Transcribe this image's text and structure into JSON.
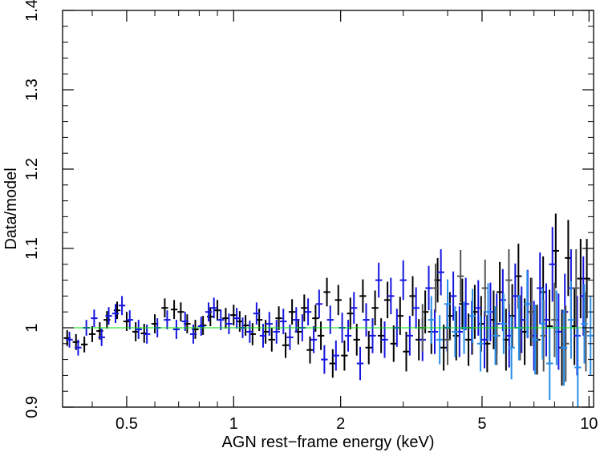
{
  "chart_data": {
    "type": "scatter",
    "xlabel": "AGN rest−frame energy (keV)",
    "ylabel": "Data/model",
    "x_scale": "log",
    "xlim": [
      0.33,
      10.3
    ],
    "ylim": [
      0.9,
      1.4
    ],
    "x_ticks": [
      {
        "value": 0.5,
        "label": "0.5"
      },
      {
        "value": 1,
        "label": "1"
      },
      {
        "value": 2,
        "label": "2"
      },
      {
        "value": 5,
        "label": "5"
      },
      {
        "value": 10,
        "label": "10"
      }
    ],
    "y_ticks": [
      {
        "value": 0.9,
        "label": "0.9"
      },
      {
        "value": 1.0,
        "label": "1"
      },
      {
        "value": 1.1,
        "label": "1.1"
      },
      {
        "value": 1.2,
        "label": "1.2"
      },
      {
        "value": 1.3,
        "label": "1.3"
      },
      {
        "value": 1.4,
        "label": "1.4"
      }
    ],
    "reference_line": {
      "y": 1.0,
      "color": "#00dd00"
    },
    "grid": false,
    "colors": {
      "black": "#000000",
      "blue": "#1515e0",
      "gray": "#555555",
      "lightblue": "#2a8ee8",
      "axis": "#000000"
    },
    "series": [
      {
        "color": "black",
        "points": [
          [
            0.34,
            0.987,
            0.01
          ],
          [
            0.36,
            0.982,
            0.01
          ],
          [
            0.38,
            0.979,
            0.01
          ],
          [
            0.4,
            0.992,
            0.01
          ],
          [
            0.42,
            0.996,
            0.011
          ],
          [
            0.44,
            1.01,
            0.011
          ],
          [
            0.47,
            1.022,
            0.011
          ],
          [
            0.5,
            1.008,
            0.012
          ],
          [
            0.53,
            0.995,
            0.012
          ],
          [
            0.56,
            0.993,
            0.012
          ],
          [
            0.6,
            1.005,
            0.012
          ],
          [
            0.64,
            1.025,
            0.012
          ],
          [
            0.68,
            1.023,
            0.012
          ],
          [
            0.71,
            1.02,
            0.012
          ],
          [
            0.74,
            1.005,
            0.012
          ],
          [
            0.78,
            0.998,
            0.012
          ],
          [
            0.82,
            1.003,
            0.012
          ],
          [
            0.86,
            1.014,
            0.012
          ],
          [
            0.9,
            1.022,
            0.013
          ],
          [
            0.95,
            1.012,
            0.013
          ],
          [
            1.0,
            1.016,
            0.013
          ],
          [
            1.04,
            1.008,
            0.013
          ],
          [
            1.08,
            1.003,
            0.013
          ],
          [
            1.13,
            0.992,
            0.014
          ],
          [
            1.18,
            1.01,
            0.014
          ],
          [
            1.23,
            0.995,
            0.015
          ],
          [
            1.28,
            0.985,
            0.015
          ],
          [
            1.34,
            1.012,
            0.015
          ],
          [
            1.4,
            0.978,
            0.016
          ],
          [
            1.46,
            1.02,
            0.016
          ],
          [
            1.52,
            0.995,
            0.016
          ],
          [
            1.58,
            1.025,
            0.017
          ],
          [
            1.64,
            0.972,
            0.017
          ],
          [
            1.7,
            1.012,
            0.017
          ],
          [
            1.76,
            0.99,
            0.018
          ],
          [
            1.83,
            1.045,
            0.018
          ],
          [
            1.9,
            0.955,
            0.018
          ],
          [
            1.97,
            1.035,
            0.019
          ],
          [
            2.05,
            0.965,
            0.019
          ],
          [
            2.13,
            1.018,
            0.02
          ],
          [
            2.22,
            0.985,
            0.02
          ],
          [
            2.31,
            1.04,
            0.021
          ],
          [
            2.4,
            0.975,
            0.021
          ],
          [
            2.5,
            1.025,
            0.022
          ],
          [
            2.6,
            0.99,
            0.022
          ],
          [
            2.71,
            1.035,
            0.023
          ],
          [
            2.82,
            0.98,
            0.023
          ],
          [
            2.94,
            1.015,
            0.024
          ],
          [
            3.06,
            0.97,
            0.025
          ],
          [
            3.19,
            1.04,
            0.025
          ],
          [
            3.32,
            0.985,
            0.026
          ],
          [
            3.46,
            1.02,
            0.027
          ],
          [
            3.6,
            0.995,
            0.028
          ],
          [
            3.75,
            1.06,
            0.028
          ],
          [
            3.9,
            0.975,
            0.029
          ],
          [
            4.06,
            1.015,
            0.03
          ],
          [
            4.23,
            0.99,
            0.031
          ],
          [
            4.4,
            1.03,
            0.032
          ],
          [
            4.58,
            0.985,
            0.033
          ],
          [
            4.77,
            1.02,
            0.034
          ],
          [
            4.97,
            1.005,
            0.035
          ],
          [
            5.17,
            0.98,
            0.036
          ],
          [
            5.39,
            1.01,
            0.037
          ],
          [
            5.61,
            1.045,
            0.038
          ],
          [
            5.84,
            0.985,
            0.039
          ],
          [
            6.08,
            1.015,
            0.04
          ],
          [
            6.33,
            1.065,
            0.041
          ],
          [
            6.59,
            0.995,
            0.042
          ],
          [
            6.86,
            1.02,
            0.043
          ],
          [
            7.14,
            0.985,
            0.044
          ],
          [
            7.43,
            1.045,
            0.045
          ],
          [
            7.74,
            1.002,
            0.046
          ],
          [
            8.06,
            1.097,
            0.047
          ],
          [
            8.39,
            0.975,
            0.048
          ],
          [
            8.74,
            1.088,
            0.048
          ],
          [
            9.1,
            1.002,
            0.049
          ],
          [
            9.47,
            1.062,
            0.05
          ],
          [
            9.86,
            1.062,
            0.05
          ]
        ]
      },
      {
        "color": "blue",
        "points": [
          [
            0.345,
            0.985,
            0.01
          ],
          [
            0.365,
            0.975,
            0.01
          ],
          [
            0.385,
            1.0,
            0.01
          ],
          [
            0.405,
            1.012,
            0.011
          ],
          [
            0.425,
            0.988,
            0.011
          ],
          [
            0.445,
            1.015,
            0.011
          ],
          [
            0.465,
            1.018,
            0.012
          ],
          [
            0.485,
            1.028,
            0.012
          ],
          [
            0.51,
            1.01,
            0.012
          ],
          [
            0.54,
            0.998,
            0.012
          ],
          [
            0.57,
            0.992,
            0.012
          ],
          [
            0.61,
            1.0,
            0.012
          ],
          [
            0.65,
            1.01,
            0.012
          ],
          [
            0.69,
            0.998,
            0.012
          ],
          [
            0.73,
            1.008,
            0.012
          ],
          [
            0.77,
            0.992,
            0.012
          ],
          [
            0.81,
            1.002,
            0.012
          ],
          [
            0.85,
            1.02,
            0.012
          ],
          [
            0.88,
            1.025,
            0.013
          ],
          [
            0.92,
            1.01,
            0.013
          ],
          [
            0.97,
            1.005,
            0.013
          ],
          [
            1.02,
            1.012,
            0.013
          ],
          [
            1.06,
            1.0,
            0.013
          ],
          [
            1.11,
            0.995,
            0.014
          ],
          [
            1.16,
            1.018,
            0.014
          ],
          [
            1.21,
            0.99,
            0.015
          ],
          [
            1.26,
            1.005,
            0.015
          ],
          [
            1.32,
            0.995,
            0.015
          ],
          [
            1.38,
            1.008,
            0.016
          ],
          [
            1.44,
            0.988,
            0.016
          ],
          [
            1.5,
            1.01,
            0.016
          ],
          [
            1.56,
            1.0,
            0.017
          ],
          [
            1.62,
            1.02,
            0.017
          ],
          [
            1.68,
            0.985,
            0.017
          ],
          [
            1.74,
            1.03,
            0.018
          ],
          [
            1.8,
            0.96,
            0.018
          ],
          [
            1.87,
            1.01,
            0.018
          ],
          [
            1.94,
            0.965,
            0.019
          ],
          [
            2.02,
            1.0,
            0.019
          ],
          [
            2.1,
            0.99,
            0.02
          ],
          [
            2.18,
            1.025,
            0.02
          ],
          [
            2.27,
            0.955,
            0.021
          ],
          [
            2.36,
            1.01,
            0.021
          ],
          [
            2.46,
            0.99,
            0.022
          ],
          [
            2.56,
            1.06,
            0.022
          ],
          [
            2.66,
            0.985,
            0.023
          ],
          [
            2.77,
            1.04,
            0.023
          ],
          [
            2.88,
            1.0,
            0.024
          ],
          [
            3.0,
            1.06,
            0.025
          ],
          [
            3.13,
            0.99,
            0.025
          ],
          [
            3.26,
            1.025,
            0.026
          ],
          [
            3.4,
            0.985,
            0.027
          ],
          [
            3.54,
            1.05,
            0.028
          ],
          [
            3.68,
            0.995,
            0.028
          ],
          [
            3.83,
            1.07,
            0.029
          ],
          [
            3.99,
            1.0,
            0.03
          ],
          [
            4.15,
            1.04,
            0.031
          ],
          [
            4.32,
            0.995,
            0.032
          ],
          [
            4.5,
            1.03,
            0.033
          ],
          [
            4.68,
            1.0,
            0.034
          ],
          [
            4.88,
            1.025,
            0.035
          ],
          [
            5.08,
            0.985,
            0.036
          ],
          [
            5.28,
            1.02,
            0.037
          ],
          [
            5.5,
            1.005,
            0.038
          ],
          [
            5.72,
            1.035,
            0.039
          ],
          [
            5.96,
            0.99,
            0.04
          ],
          [
            6.2,
            1.04,
            0.041
          ],
          [
            6.46,
            1.01,
            0.042
          ],
          [
            6.72,
            1.03,
            0.043
          ],
          [
            7.0,
            0.99,
            0.044
          ],
          [
            7.28,
            1.05,
            0.045
          ],
          [
            7.58,
            1.01,
            0.046
          ],
          [
            7.89,
            1.08,
            0.047
          ],
          [
            8.21,
            0.995,
            0.048
          ],
          [
            8.55,
            1.02,
            0.048
          ],
          [
            8.9,
            1.05,
            0.049
          ],
          [
            9.26,
            0.99,
            0.05
          ],
          [
            9.64,
            1.04,
            0.05
          ]
        ]
      },
      {
        "color": "gray",
        "points": [
          [
            3.4,
            1.0,
            0.03
          ],
          [
            3.7,
            1.05,
            0.031
          ],
          [
            4.0,
            0.985,
            0.032
          ],
          [
            4.35,
            1.065,
            0.033
          ],
          [
            4.7,
            1.0,
            0.034
          ],
          [
            5.1,
            1.05,
            0.036
          ],
          [
            5.5,
            0.99,
            0.037
          ],
          [
            5.95,
            1.06,
            0.039
          ],
          [
            6.4,
            1.0,
            0.041
          ],
          [
            6.9,
            1.02,
            0.043
          ],
          [
            7.45,
            0.99,
            0.045
          ],
          [
            8.0,
            1.01,
            0.047
          ],
          [
            8.6,
            0.98,
            0.048
          ],
          [
            9.2,
            1.05,
            0.049
          ],
          [
            9.8,
            0.995,
            0.05
          ]
        ]
      },
      {
        "color": "lightblue",
        "points": [
          [
            3.6,
            1.01,
            0.03
          ],
          [
            3.8,
            0.985,
            0.031
          ],
          [
            4.0,
            1.03,
            0.031
          ],
          [
            4.2,
            0.995,
            0.032
          ],
          [
            4.45,
            1.0,
            0.033
          ],
          [
            4.7,
            1.015,
            0.034
          ],
          [
            4.95,
            0.98,
            0.035
          ],
          [
            5.2,
            1.02,
            0.036
          ],
          [
            5.45,
            0.99,
            0.037
          ],
          [
            5.75,
            1.005,
            0.038
          ],
          [
            6.05,
            0.975,
            0.04
          ],
          [
            6.35,
            1.0,
            0.041
          ],
          [
            6.7,
            1.03,
            0.042
          ],
          [
            7.05,
            0.985,
            0.044
          ],
          [
            7.4,
            1.005,
            0.045
          ],
          [
            7.75,
            0.955,
            0.046
          ],
          [
            8.1,
            1.0,
            0.047
          ],
          [
            8.5,
            0.975,
            0.048
          ],
          [
            8.9,
            1.01,
            0.049
          ],
          [
            9.3,
            0.95,
            0.05
          ],
          [
            9.7,
            1.005,
            0.05
          ],
          [
            10.1,
            0.99,
            0.05
          ]
        ]
      }
    ]
  }
}
